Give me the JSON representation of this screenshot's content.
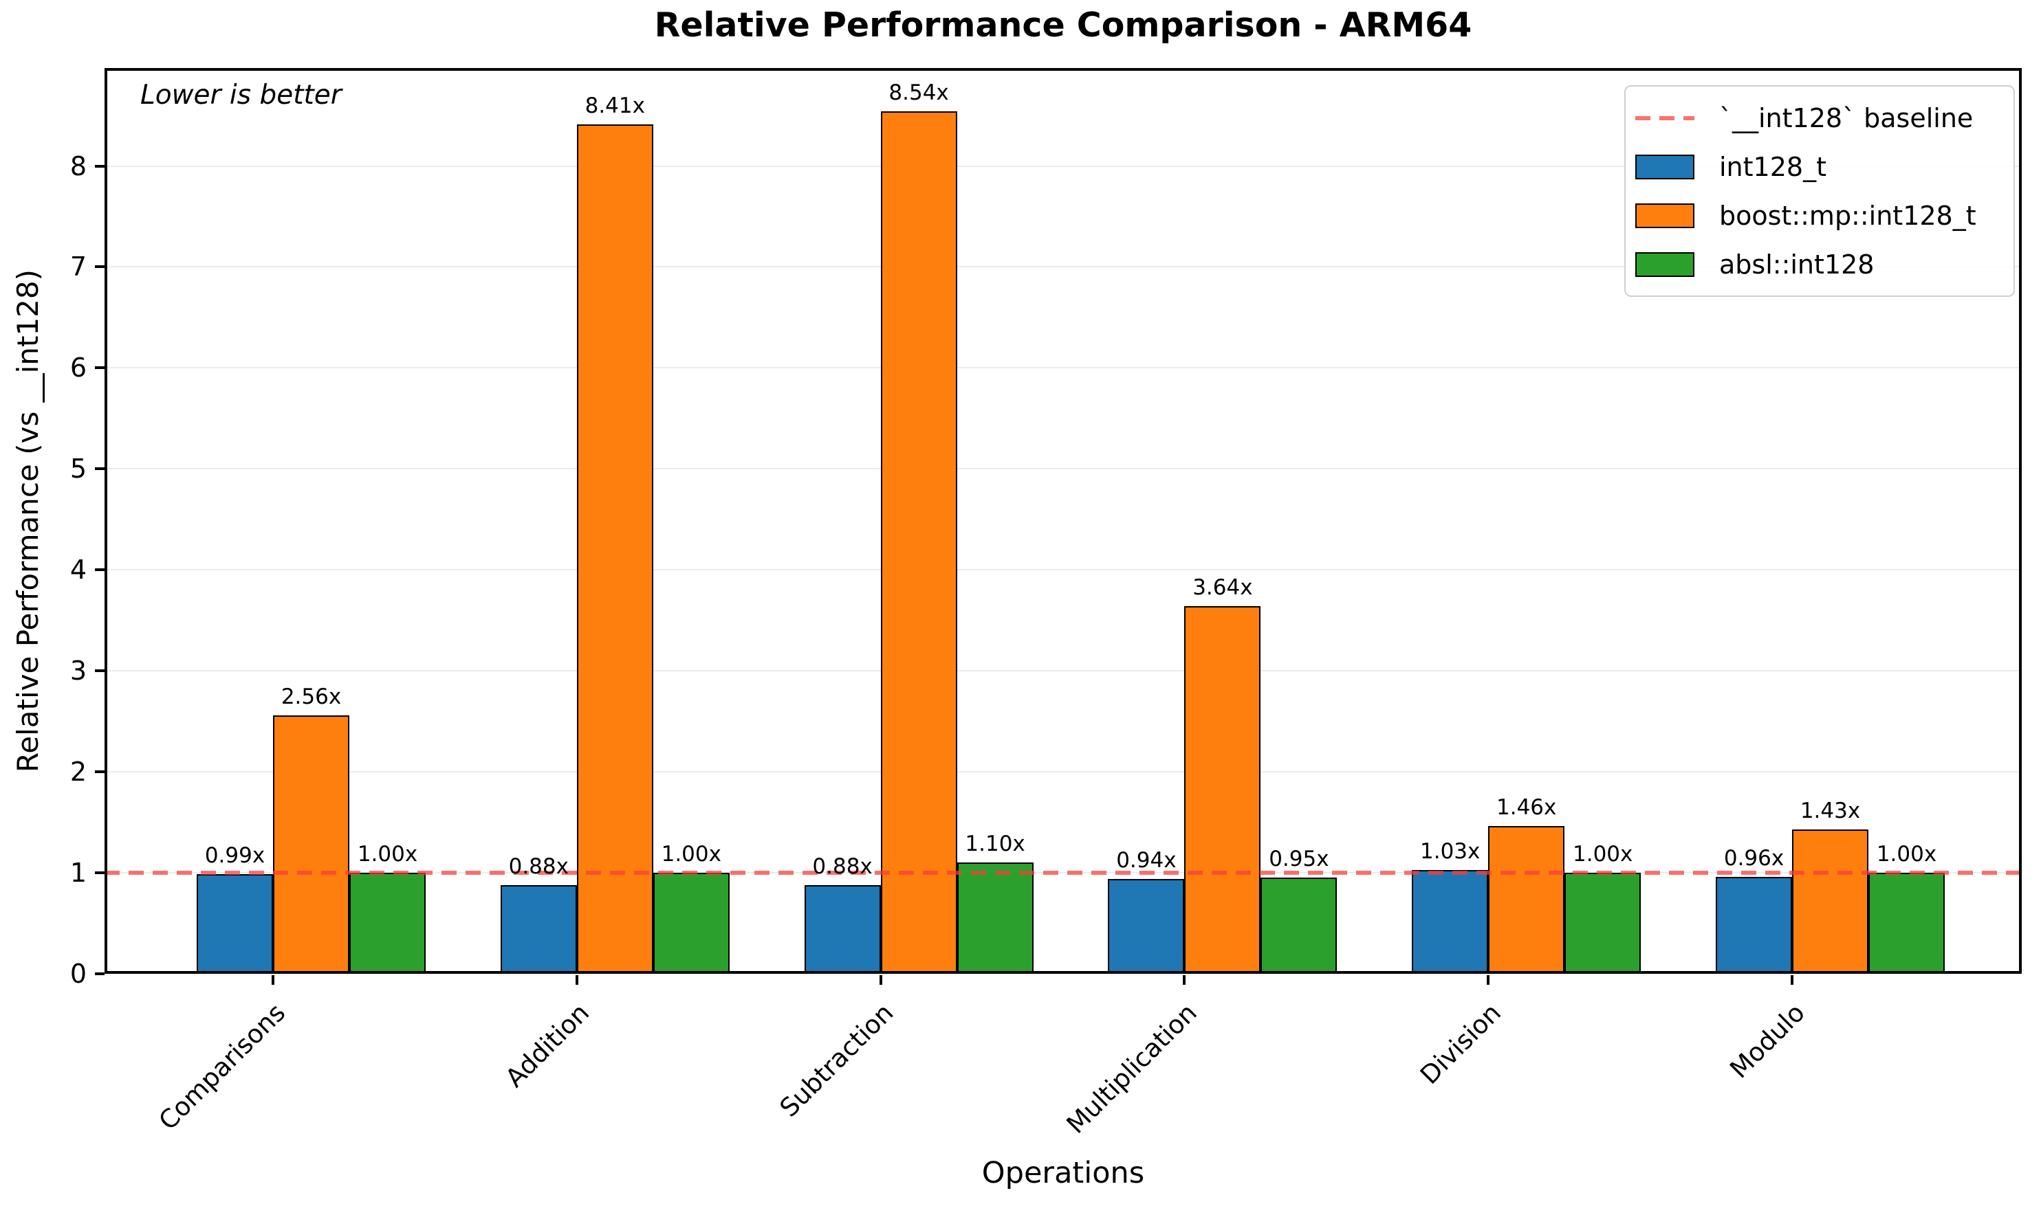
{
  "figure": {
    "title": "Relative Performance Comparison - ARM64",
    "xlabel": "Operations",
    "ylabel": "Relative Performance (vs __int128)",
    "annotation": "Lower is better"
  },
  "chart_data": {
    "type": "bar",
    "title": "Relative Performance Comparison - ARM64",
    "xlabel": "Operations",
    "ylabel": "Relative Performance (vs __int128)",
    "annotation": "Lower is better",
    "categories": [
      "Comparisons",
      "Addition",
      "Subtraction",
      "Multiplication",
      "Division",
      "Modulo"
    ],
    "series": [
      {
        "name": "int128_t",
        "color": "#1f77b4",
        "values": [
          0.99,
          0.88,
          0.88,
          0.94,
          1.03,
          0.96
        ],
        "value_labels": [
          "0.99x",
          "0.88x",
          "0.88x",
          "0.94x",
          "1.03x",
          "0.96x"
        ]
      },
      {
        "name": "boost::mp::int128_t",
        "color": "#ff7f0e",
        "values": [
          2.56,
          8.41,
          8.54,
          3.64,
          1.46,
          1.43
        ],
        "value_labels": [
          "2.56x",
          "8.41x",
          "8.54x",
          "3.64x",
          "1.46x",
          "1.43x"
        ]
      },
      {
        "name": "absl::int128",
        "color": "#2ca02c",
        "values": [
          1.0,
          1.0,
          1.1,
          0.95,
          1.0,
          1.0
        ],
        "value_labels": [
          "1.00x",
          "1.00x",
          "1.10x",
          "0.95x",
          "1.00x",
          "1.00x"
        ]
      }
    ],
    "baseline": {
      "value": 1.0,
      "label": "`__int128` baseline",
      "color": "#fa3c3c",
      "style": "dashed"
    },
    "bar_edge_color": "#000000",
    "grid_color": "#ebebeb",
    "ylim": [
      0,
      8.97
    ],
    "yticks": [
      0,
      1,
      2,
      3,
      4,
      5,
      6,
      7,
      8
    ],
    "ytick_labels": [
      "0",
      "1",
      "2",
      "3",
      "4",
      "5",
      "6",
      "7",
      "8"
    ],
    "x_tick_rotation": 45,
    "grid": "horizontal",
    "legend_position": "upper right"
  }
}
